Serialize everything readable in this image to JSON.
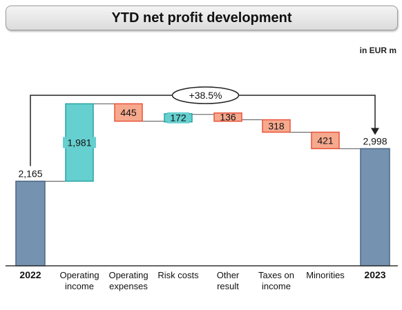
{
  "title": "YTD net profit development",
  "unit": "in EUR m",
  "chart_data": {
    "type": "waterfall",
    "categories": [
      "2022",
      "Operating income",
      "Operating expenses",
      "Risk costs",
      "Other result",
      "Taxes on income",
      "Minorities",
      "2023"
    ],
    "category_labels": [
      [
        "2022"
      ],
      [
        "Operating",
        "income"
      ],
      [
        "Operating",
        "expenses"
      ],
      [
        "Risk costs"
      ],
      [
        "Other",
        "result"
      ],
      [
        "Taxes on",
        "income"
      ],
      [
        "Minorities"
      ],
      [
        "2023"
      ]
    ],
    "values": [
      2165,
      1981,
      -445,
      172,
      -136,
      -318,
      -421,
      2998
    ],
    "labels": [
      "2,165",
      "1,981",
      "445",
      "172",
      "136",
      "318",
      "421",
      "2,998"
    ],
    "kinds": [
      "total",
      "increase",
      "decrease",
      "increase",
      "decrease",
      "decrease",
      "decrease",
      "total"
    ],
    "change_label": "+38.5%",
    "ylim": [
      0,
      4200
    ],
    "colors": {
      "total": "#7592b0",
      "total_stroke": "#4a6683",
      "increase": "#66cfcf",
      "increase_stroke": "#2aa3a3",
      "decrease": "#f7a98e",
      "decrease_stroke": "#e8523a",
      "connector": "#555555",
      "axis": "#333333"
    }
  }
}
